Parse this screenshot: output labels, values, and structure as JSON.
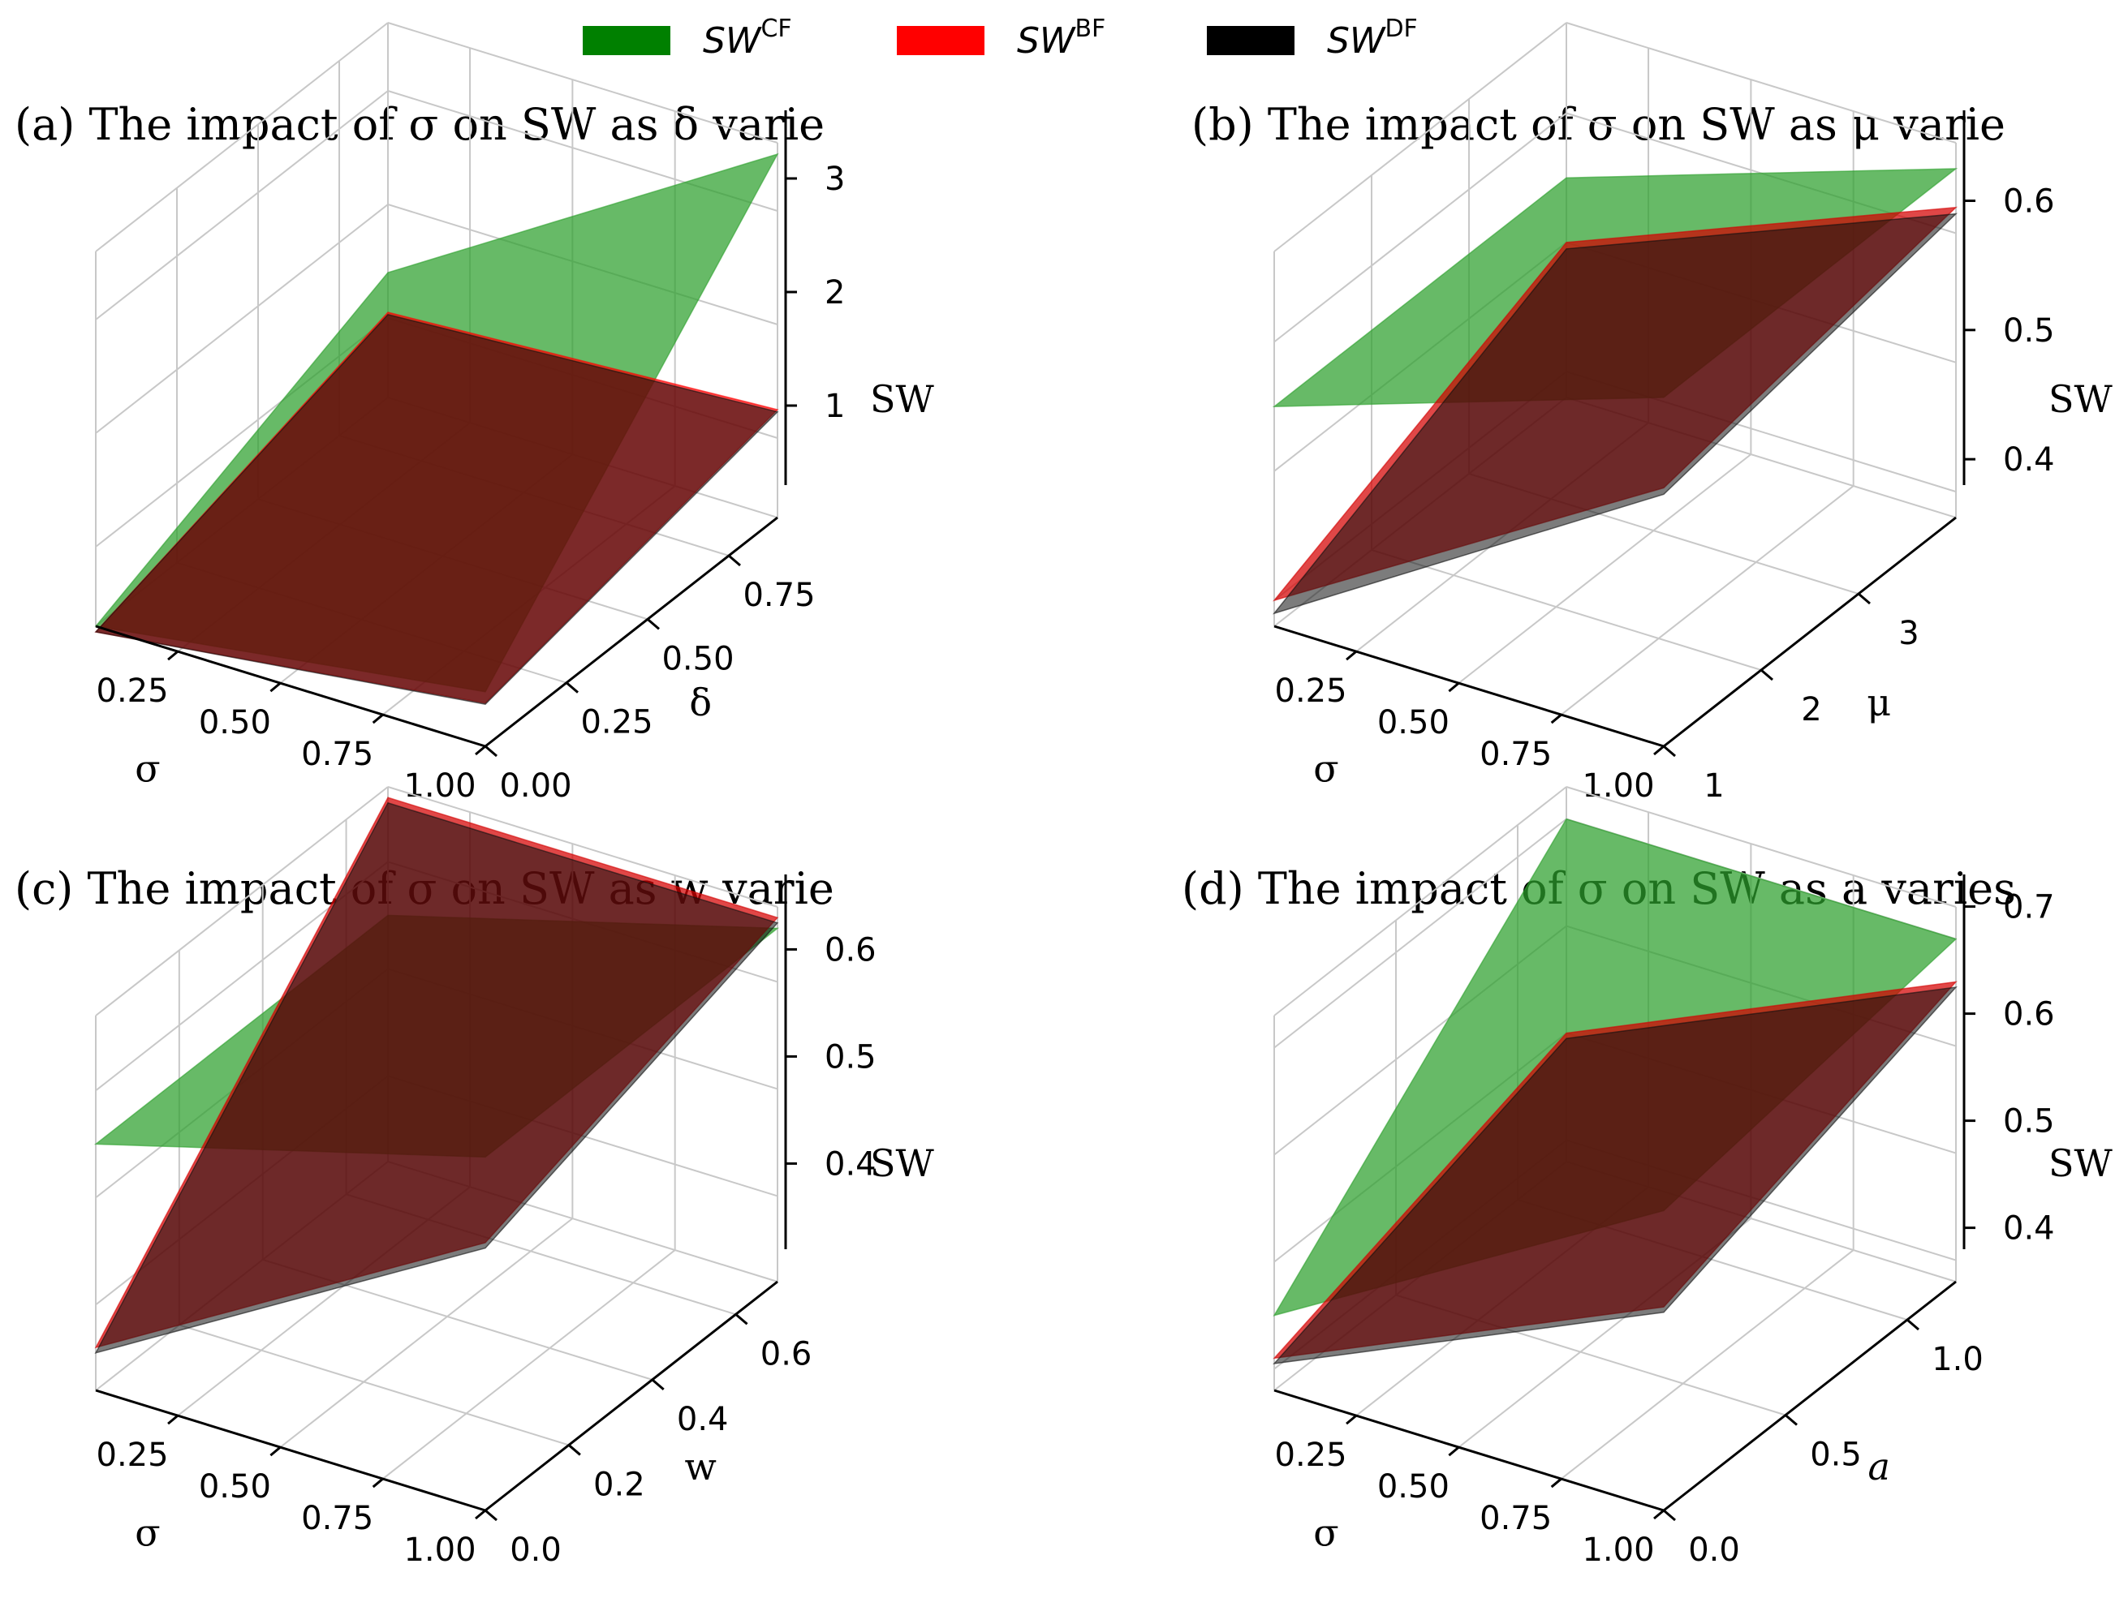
{
  "legend": {
    "items": [
      {
        "base": "SW",
        "sup": "CF",
        "color": "#008000"
      },
      {
        "base": "SW",
        "sup": "BF",
        "color": "#ff0000"
      },
      {
        "base": "SW",
        "sup": "DF",
        "color": "#000000"
      }
    ],
    "placement": "top-center"
  },
  "chart_data": [
    {
      "type": "surface",
      "title": "(a) The impact of σ on SW as δ varie",
      "xlabel": "σ",
      "ylabel": "δ",
      "zlabel": "SW",
      "xlim": [
        0.05,
        1.0
      ],
      "ylim": [
        0.0,
        0.9
      ],
      "zlim": [
        0.3,
        3.6
      ],
      "xticks": [
        "0.25",
        "0.50",
        "0.75",
        "1.00"
      ],
      "yticks": [
        "0.00",
        "0.25",
        "0.50",
        "0.75"
      ],
      "zticks": [
        "1",
        "2",
        "3"
      ],
      "x": [
        0.05,
        1.0
      ],
      "y": [
        0.0,
        0.9
      ],
      "series": [
        {
          "name": "SW^CF",
          "color": "#2ca02c",
          "alpha": 0.72,
          "z": [
            [
              0.3,
              0.78
            ],
            [
              1.4,
              3.5
            ]
          ]
        },
        {
          "name": "SW^BF",
          "color": "#ff0000",
          "alpha": 0.72,
          "z": [
            [
              0.25,
              0.68
            ],
            [
              1.05,
              1.25
            ]
          ]
        },
        {
          "name": "SW^DF",
          "color": "#111111",
          "alpha": 0.55,
          "z": [
            [
              0.25,
              0.67
            ],
            [
              1.03,
              1.23
            ]
          ]
        }
      ]
    },
    {
      "type": "surface",
      "title": "(b) The impact of σ on SW as μ varie",
      "xlabel": "σ",
      "ylabel": "μ",
      "zlabel": "SW",
      "xlim": [
        0.05,
        1.0
      ],
      "ylim": [
        1.0,
        4.0
      ],
      "zlim": [
        0.38,
        0.67
      ],
      "xticks": [
        "0.25",
        "0.50",
        "0.75",
        "1.00"
      ],
      "yticks": [
        "1",
        "2",
        "3"
      ],
      "zticks": [
        "0.4",
        "0.5",
        "0.6"
      ],
      "x": [
        0.05,
        1.0
      ],
      "y": [
        1.0,
        4.0
      ],
      "series": [
        {
          "name": "SW^CF",
          "color": "#2ca02c",
          "alpha": 0.72,
          "z": [
            [
              0.55,
              0.65
            ],
            [
              0.55,
              0.65
            ]
          ]
        },
        {
          "name": "SW^BF",
          "color": "#d40000",
          "alpha": 0.72,
          "z": [
            [
              0.4,
              0.58
            ],
            [
              0.5,
              0.62
            ]
          ]
        },
        {
          "name": "SW^DF",
          "color": "#111111",
          "alpha": 0.55,
          "z": [
            [
              0.39,
              0.575
            ],
            [
              0.495,
              0.615
            ]
          ]
        }
      ]
    },
    {
      "type": "surface",
      "title": "(c) The impact of σ on SW as w varie",
      "xlabel": "σ",
      "ylabel": "w",
      "zlabel": "SW",
      "xlim": [
        0.05,
        1.0
      ],
      "ylim": [
        0.0,
        0.7
      ],
      "zlim": [
        0.32,
        0.67
      ],
      "xticks": [
        "0.25",
        "0.50",
        "0.75",
        "1.00"
      ],
      "yticks": [
        "0.0",
        "0.2",
        "0.4",
        "0.6"
      ],
      "zticks": [
        "0.4",
        "0.5",
        "0.6"
      ],
      "x": [
        0.05,
        1.0
      ],
      "y": [
        0.0,
        0.7
      ],
      "series": [
        {
          "name": "SW^CF",
          "color": "#2ca02c",
          "alpha": 0.72,
          "z": [
            [
              0.55,
              0.65
            ],
            [
              0.55,
              0.65
            ]
          ]
        },
        {
          "name": "SW^BF",
          "color": "#d40000",
          "alpha": 0.72,
          "z": [
            [
              0.36,
              0.57
            ],
            [
              0.66,
              0.66
            ]
          ]
        },
        {
          "name": "SW^DF",
          "color": "#111111",
          "alpha": 0.55,
          "z": [
            [
              0.355,
              0.565
            ],
            [
              0.655,
              0.655
            ]
          ]
        }
      ]
    },
    {
      "type": "surface",
      "title": "(d) The impact of σ on SW as a varies",
      "xlabel": "σ",
      "ylabel": "a",
      "zlabel": "SW",
      "xlim": [
        0.05,
        1.0
      ],
      "ylim": [
        0.0,
        1.2
      ],
      "zlim": [
        0.38,
        0.73
      ],
      "xticks": [
        "0.25",
        "0.50",
        "0.75",
        "1.00"
      ],
      "yticks": [
        "0.0",
        "0.5",
        "1.0"
      ],
      "zticks": [
        "0.4",
        "0.5",
        "0.6",
        "0.7"
      ],
      "x": [
        0.05,
        1.0
      ],
      "y": [
        0.0,
        1.2
      ],
      "series": [
        {
          "name": "SW^CF",
          "color": "#2ca02c",
          "alpha": 0.72,
          "z": [
            [
              0.45,
              0.66
            ],
            [
              0.7,
              0.7
            ]
          ]
        },
        {
          "name": "SW^BF",
          "color": "#d40000",
          "alpha": 0.72,
          "z": [
            [
              0.41,
              0.57
            ],
            [
              0.5,
              0.66
            ]
          ]
        },
        {
          "name": "SW^DF",
          "color": "#111111",
          "alpha": 0.55,
          "z": [
            [
              0.405,
              0.565
            ],
            [
              0.495,
              0.655
            ]
          ]
        }
      ]
    }
  ]
}
